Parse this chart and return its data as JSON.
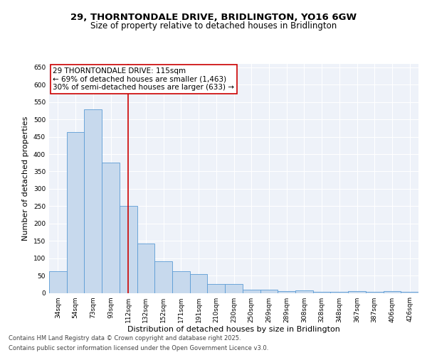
{
  "title_line1": "29, THORNTONDALE DRIVE, BRIDLINGTON, YO16 6GW",
  "title_line2": "Size of property relative to detached houses in Bridlington",
  "xlabel": "Distribution of detached houses by size in Bridlington",
  "ylabel": "Number of detached properties",
  "categories": [
    "34sqm",
    "54sqm",
    "73sqm",
    "93sqm",
    "112sqm",
    "132sqm",
    "152sqm",
    "171sqm",
    "191sqm",
    "210sqm",
    "230sqm",
    "250sqm",
    "269sqm",
    "289sqm",
    "308sqm",
    "328sqm",
    "348sqm",
    "367sqm",
    "387sqm",
    "406sqm",
    "426sqm"
  ],
  "values": [
    62,
    463,
    530,
    375,
    250,
    142,
    92,
    62,
    54,
    25,
    25,
    10,
    10,
    5,
    8,
    3,
    3,
    5,
    3,
    5,
    3
  ],
  "bar_color": "#c7d9ed",
  "bar_edge_color": "#5b9bd5",
  "vline_x": 4.0,
  "vline_color": "#cc0000",
  "annotation_text": "29 THORNTONDALE DRIVE: 115sqm\n← 69% of detached houses are smaller (1,463)\n30% of semi-detached houses are larger (633) →",
  "annotation_box_color": "#ffffff",
  "annotation_box_edge": "#cc0000",
  "ylim": [
    0,
    660
  ],
  "yticks": [
    0,
    50,
    100,
    150,
    200,
    250,
    300,
    350,
    400,
    450,
    500,
    550,
    600,
    650
  ],
  "footnote1": "Contains HM Land Registry data © Crown copyright and database right 2025.",
  "footnote2": "Contains public sector information licensed under the Open Government Licence v3.0.",
  "background_color": "#eef2f9",
  "grid_color": "#ffffff",
  "title_fontsize": 9.5,
  "subtitle_fontsize": 8.5,
  "label_fontsize": 8,
  "tick_fontsize": 6.5,
  "annotation_fontsize": 7.5,
  "footnote_fontsize": 6
}
